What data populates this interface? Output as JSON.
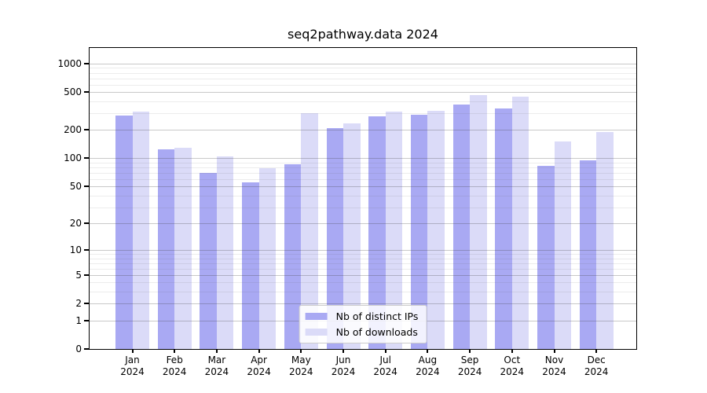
{
  "title": "seq2pathway.data 2024",
  "legend": {
    "items": [
      {
        "label": "Nb of distinct IPs",
        "color": "#a9a9f3"
      },
      {
        "label": "Nb of downloads",
        "color": "#dbdbf8"
      }
    ]
  },
  "chart_data": {
    "type": "bar",
    "title": "seq2pathway.data 2024",
    "yscale": "log1p",
    "categories": [
      "Jan",
      "Feb",
      "Mar",
      "Apr",
      "May",
      "Jun",
      "Jul",
      "Aug",
      "Sep",
      "Oct",
      "Nov",
      "Dec"
    ],
    "x_sublabel": "2024",
    "series": [
      {
        "name": "Nb of distinct IPs",
        "color": "#a9a9f3",
        "values": [
          285,
          124,
          70,
          55,
          86,
          208,
          280,
          291,
          370,
          336,
          84,
          95
        ]
      },
      {
        "name": "Nb of downloads",
        "color": "#dbdbf8",
        "values": [
          313,
          130,
          104,
          78,
          300,
          236,
          310,
          321,
          466,
          452,
          150,
          189
        ]
      }
    ],
    "yticks": [
      0,
      1,
      2,
      5,
      10,
      20,
      50,
      100,
      200,
      500,
      1000
    ],
    "yticks_minor": [
      3,
      4,
      6,
      7,
      8,
      9,
      30,
      40,
      60,
      70,
      80,
      90,
      300,
      400,
      600,
      700,
      800,
      900
    ],
    "ylim": [
      0,
      1460
    ],
    "grid": true,
    "legend_position": "lower center",
    "bar_color_ips": "#a9a9f3",
    "bar_color_downloads": "#dbdbf8"
  }
}
